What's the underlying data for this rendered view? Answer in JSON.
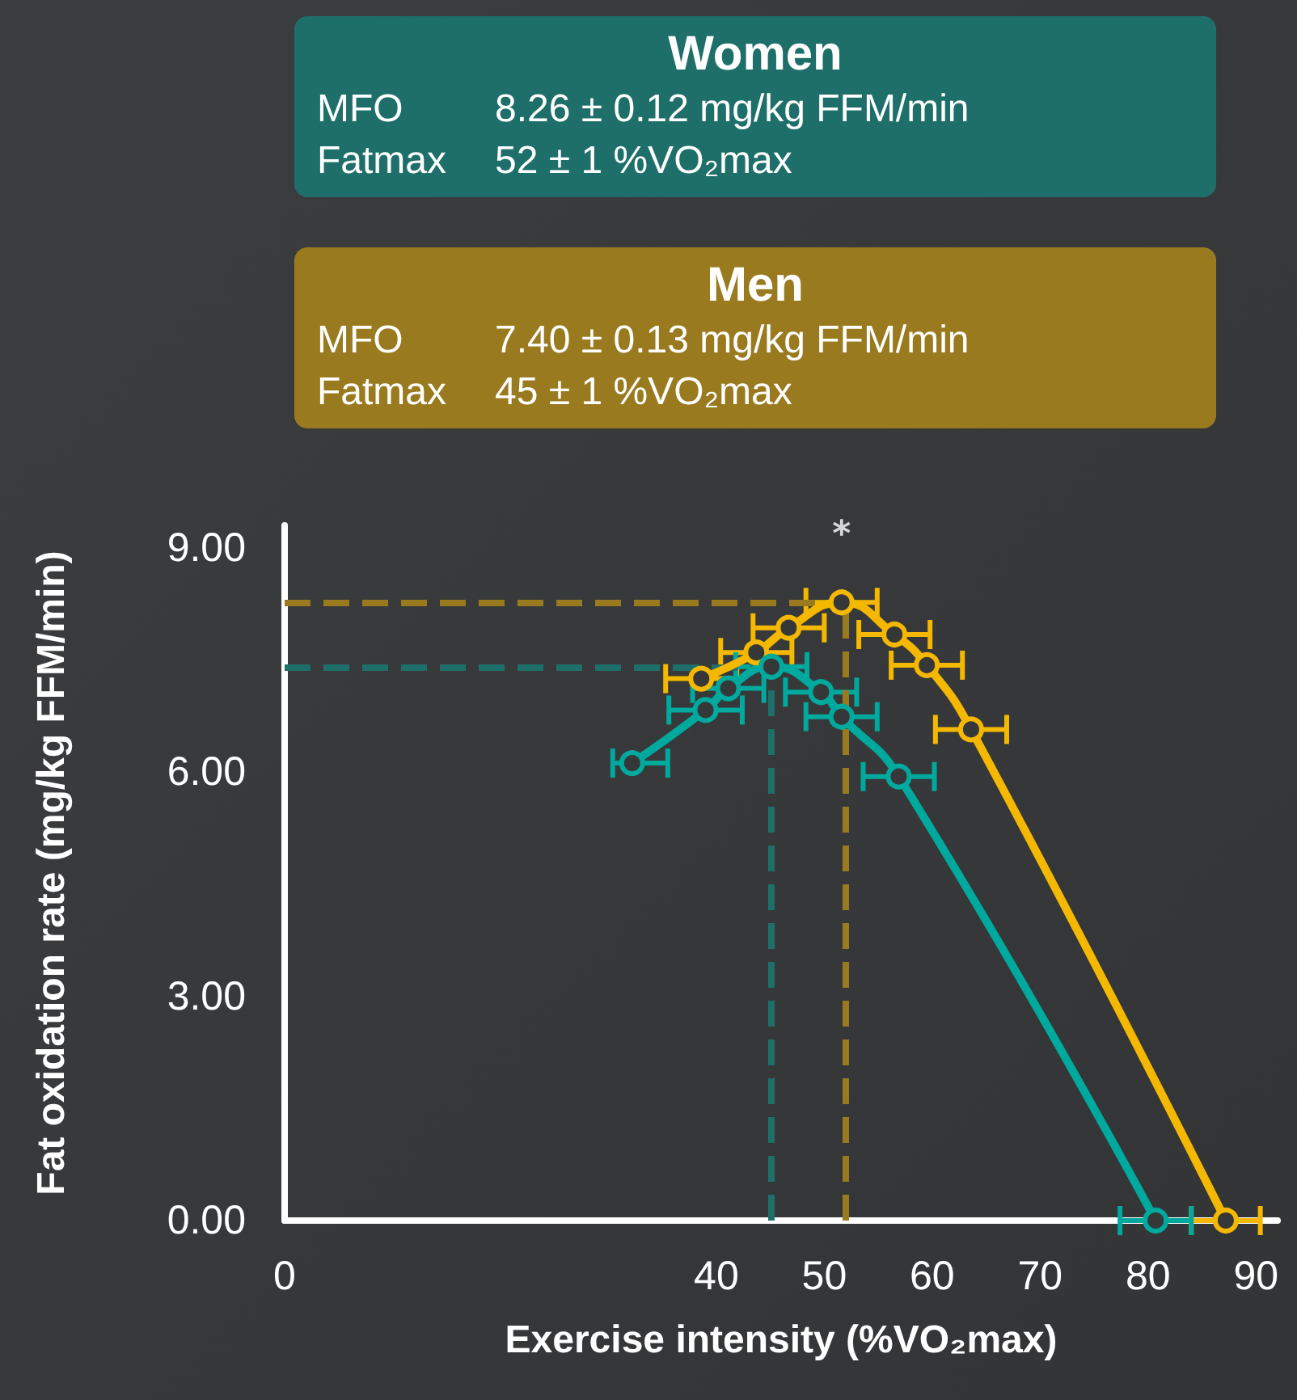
{
  "chart_data": {
    "type": "line",
    "xlabel": "Exercise intensity (%VO₂max)",
    "ylabel": "Fat oxidation rate (mg/kg FFM/min)",
    "annotations": [
      "Women",
      "MFO",
      "8.26 ± 0.12 mg/kg FFM/min",
      "Fatmax",
      "52 ± 1 %VO₂max",
      "Men",
      "MFO",
      "7.40 ± 0.13 mg/kg FFM/min",
      "Fatmax",
      "45 ± 1 %VO₂max",
      "*"
    ],
    "series": [
      {
        "color": "#f5b800",
        "x": [
          38.6,
          43.7,
          46.7,
          51.6,
          56.5,
          59.5,
          63.6,
          87.2
        ],
        "values": [
          7.25,
          7.6,
          7.93,
          8.27,
          7.84,
          7.43,
          6.57,
          0
        ],
        "xerrors": [
          3.3,
          3.3,
          3.3,
          3.3,
          3.3,
          3.3,
          3.3,
          3.2
        ]
      },
      {
        "color": "#00a99d",
        "x": [
          32.2,
          39.0,
          41.1,
          45.1,
          49.7,
          51.6,
          56.9,
          80.7
        ],
        "values": [
          6.12,
          6.83,
          7.12,
          7.41,
          7.07,
          6.74,
          5.94,
          0
        ],
        "xerrors": [
          [
            30.4,
            35.5
          ],
          3.4,
          3.3,
          3.3,
          3.3,
          3.3,
          3.3,
          3.3
        ]
      }
    ],
    "ref_lines": [
      {
        "axis": "y",
        "value": 8.26,
        "color": "#9a7a1e",
        "line_style": "dashed"
      },
      {
        "axis": "x",
        "value": 52,
        "color": "#9a7a1e",
        "line_style": "dashed"
      },
      {
        "axis": "y",
        "value": 7.4,
        "color": "#1e6f6a",
        "line_style": "dashed"
      },
      {
        "axis": "x",
        "value": 45,
        "color": "#1e6f6a",
        "line_style": "dashed"
      }
    ],
    "xlim": [
      0,
      92
    ],
    "xticks": [
      0,
      40,
      50,
      60,
      70,
      80,
      90
    ],
    "ylim": [
      0,
      9.3
    ],
    "yticks": [
      {
        "value": 0,
        "label": "0.00"
      },
      {
        "value": 3,
        "label": "3.00"
      },
      {
        "value": 6,
        "label": "6.00"
      },
      {
        "value": 9,
        "label": "9.00"
      }
    ],
    "grid": false,
    "marker": "circle",
    "line_style": "solid"
  }
}
